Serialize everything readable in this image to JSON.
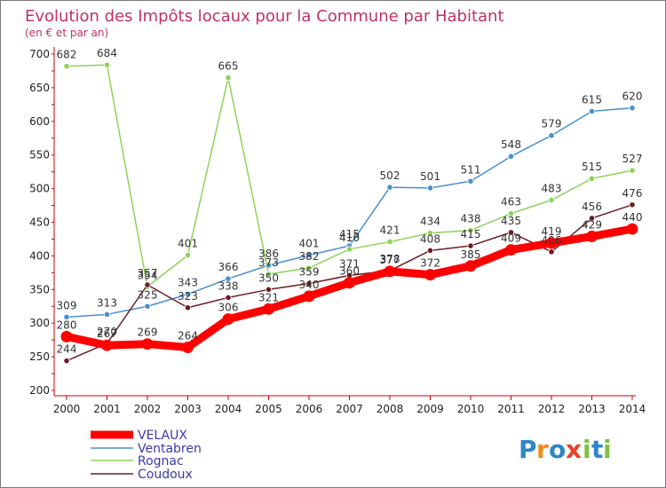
{
  "chart_data": {
    "type": "line",
    "title": "Evolution des Impôts locaux pour la Commune par Habitant",
    "subtitle": "(en € et par an)",
    "categories": [
      "2000",
      "2001",
      "2002",
      "2003",
      "2004",
      "2005",
      "2006",
      "2007",
      "2008",
      "2009",
      "2010",
      "2011",
      "2012",
      "2013",
      "2014"
    ],
    "yticks": [
      200,
      250,
      300,
      350,
      400,
      450,
      500,
      550,
      600,
      650,
      700
    ],
    "ylim": [
      200,
      700
    ],
    "grid": false,
    "legend_position": "bottom-left",
    "series": [
      {
        "name": "Ventabren",
        "color": "#4a8fcf",
        "values": [
          309,
          313,
          325,
          343,
          366,
          386,
          401,
          415,
          502,
          501,
          511,
          548,
          579,
          615,
          620
        ]
      },
      {
        "name": "Rognac",
        "color": "#8ed25a",
        "values": [
          682,
          684,
          354,
          401,
          665,
          373,
          382,
          410,
          421,
          434,
          438,
          463,
          483,
          515,
          527
        ]
      },
      {
        "name": "Coudoux",
        "color": "#6b1c26",
        "values": [
          244,
          270,
          357,
          323,
          338,
          350,
          359,
          371,
          378,
          408,
          415,
          435,
          406,
          456,
          476
        ]
      },
      {
        "name": "VELAUX",
        "color": "#ff0000",
        "values": [
          280,
          267,
          269,
          264,
          306,
          321,
          340,
          360,
          377,
          372,
          385,
          409,
          419,
          429,
          440
        ]
      }
    ],
    "data_labels": [
      {
        "series": "Ventabren",
        "values": [
          309,
          313,
          325,
          343,
          366,
          386,
          401,
          415,
          502,
          501,
          511,
          548,
          579,
          615,
          620
        ]
      },
      {
        "series": "Rognac",
        "values": [
          682,
          684,
          354,
          401,
          665,
          373,
          382,
          410,
          421,
          434,
          438,
          463,
          483,
          515,
          527
        ]
      },
      {
        "series": "Coudoux",
        "values": [
          244,
          270,
          357,
          323,
          338,
          350,
          359,
          371,
          378,
          408,
          415,
          435,
          406,
          456,
          476
        ]
      },
      {
        "series": "VELAUX",
        "values": [
          280,
          267,
          269,
          264,
          306,
          321,
          340,
          360,
          377,
          372,
          385,
          409,
          419,
          429,
          440
        ]
      }
    ],
    "legend": [
      "VELAUX",
      "Ventabren",
      "Rognac",
      "Coudoux"
    ]
  },
  "logo": {
    "text": "Proxiti",
    "letters": [
      "P",
      "r",
      "o",
      "x",
      "i",
      "t",
      "i"
    ],
    "colors": [
      "#2f86c8",
      "#f08a1c",
      "#2f86c8",
      "#e8402a",
      "#7ac143",
      "#2f86c8",
      "#7ac143"
    ]
  }
}
